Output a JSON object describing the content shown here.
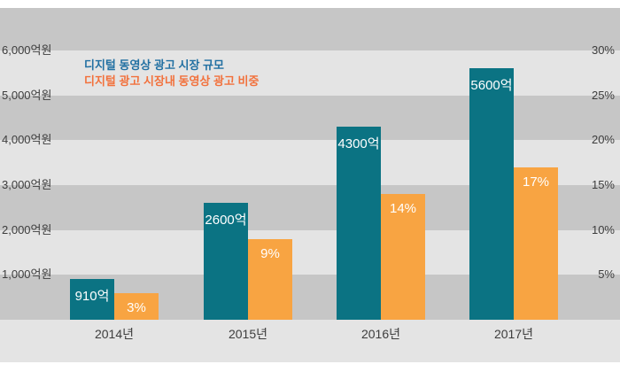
{
  "chart_data": {
    "type": "bar",
    "title": "",
    "categories": [
      "2014년",
      "2015년",
      "2016년",
      "2017년"
    ],
    "series": [
      {
        "name": "디지털 동영상 광고 시장 규모",
        "axis": "left",
        "unit": "억원",
        "values": [
          910,
          2600,
          4300,
          5600
        ],
        "bar_labels": [
          "910억",
          "2600억",
          "4300억",
          "5600억"
        ],
        "color": "#0b7383"
      },
      {
        "name": "디지털 광고 시장내 동영상 광고 비중",
        "axis": "right",
        "unit": "%",
        "values": [
          3,
          9,
          14,
          17
        ],
        "bar_labels": [
          "3%",
          "9%",
          "14%",
          "17%"
        ],
        "color": "#f8a442"
      }
    ],
    "left_axis": {
      "min": 0,
      "max": 6000,
      "ticks": [
        "6,000억원",
        "5,000억원",
        "4,000억원",
        "3,000억원",
        "2,000억원",
        "1,000억원"
      ]
    },
    "right_axis": {
      "min": 0,
      "max": 30,
      "ticks": [
        "30%",
        "25%",
        "20%",
        "15%",
        "10%",
        "5%"
      ]
    },
    "legend": {
      "position": "top-left",
      "items": [
        {
          "label": "디지털 동영상 광고 시장 규모",
          "text_color": "#2270a2"
        },
        {
          "label": "디지털 광고 시장내 동영상 광고 비중",
          "text_color": "#f2713c"
        }
      ]
    },
    "grid": "horizontal-stripes",
    "stripe_colors": {
      "dark": "#c6c6c6",
      "light": "#e4e4e4"
    },
    "bar_label_color": "#ffffff",
    "axis_text_color": "#3d3d3d"
  }
}
